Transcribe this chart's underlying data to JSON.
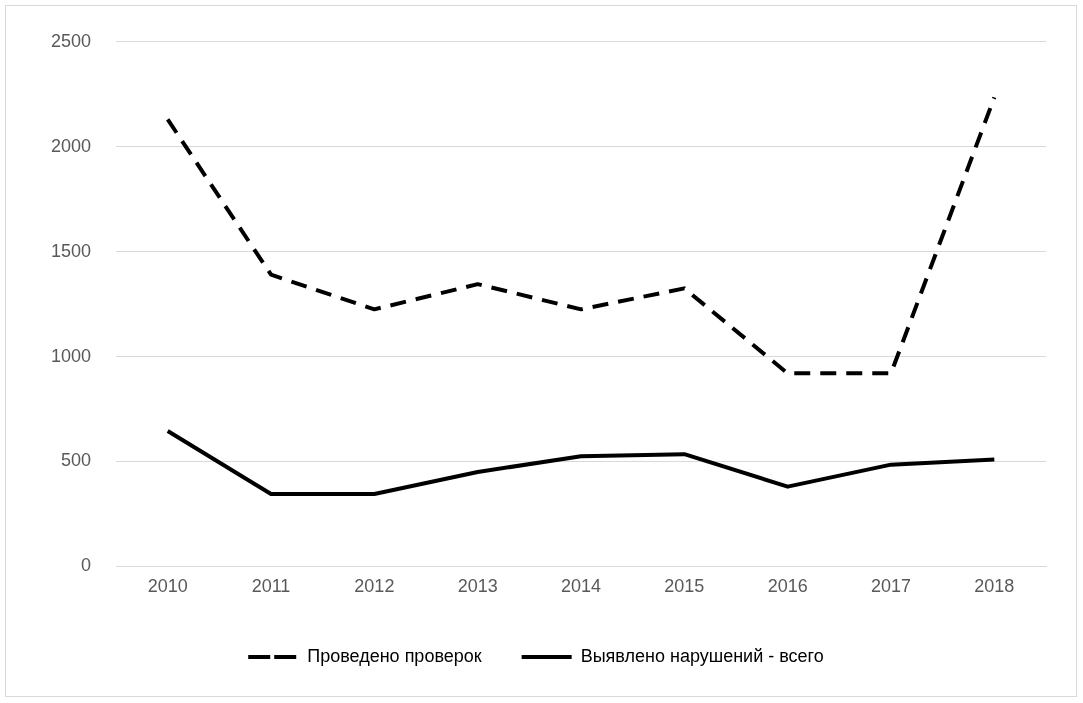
{
  "chart_data": {
    "type": "line",
    "categories": [
      "2010",
      "2011",
      "2012",
      "2013",
      "2014",
      "2015",
      "2016",
      "2017",
      "2018"
    ],
    "series": [
      {
        "name": "Проведено проверок",
        "color": "#000000",
        "line_style": "dashed",
        "values": [
          2130,
          1390,
          1225,
          1345,
          1225,
          1325,
          920,
          920,
          2235
        ]
      },
      {
        "name": "Выявлено нарушений - всего",
        "color": "#000000",
        "line_style": "solid",
        "values": [
          645,
          345,
          345,
          450,
          525,
          535,
          380,
          485,
          510
        ]
      }
    ],
    "ylim": [
      0,
      2500
    ],
    "yticks": [
      0,
      500,
      1000,
      1500,
      2000,
      2500
    ],
    "grid": "y",
    "legend": "bottom",
    "marker": "none"
  }
}
